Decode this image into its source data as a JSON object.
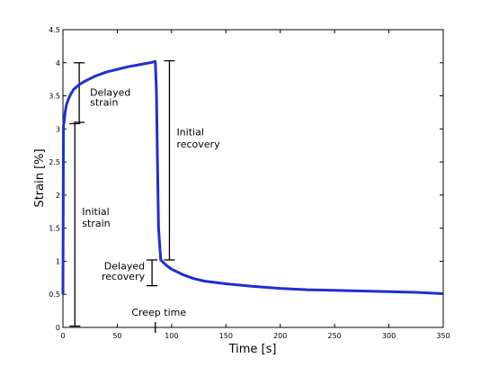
{
  "chart_data": {
    "type": "line",
    "xlabel": "Time [s]",
    "ylabel": "Strain [%]",
    "xlim": [
      0,
      350
    ],
    "ylim": [
      0,
      4.5
    ],
    "xticks": [
      0,
      50,
      100,
      150,
      200,
      250,
      300,
      350
    ],
    "yticks": [
      0,
      0.5,
      1,
      1.5,
      2,
      2.5,
      3,
      3.5,
      4,
      4.5
    ],
    "grid": false,
    "series": [
      {
        "color": "#1f2fd1",
        "x": [
          0,
          0.5,
          1,
          2,
          3,
          5,
          7,
          10,
          15,
          20,
          25,
          30,
          40,
          50,
          60,
          70,
          80,
          85,
          86,
          87,
          88,
          90,
          95,
          100,
          110,
          120,
          130,
          150,
          175,
          200,
          225,
          250,
          275,
          300,
          325,
          350
        ],
        "y": [
          0.5,
          3.05,
          3.1,
          3.25,
          3.35,
          3.45,
          3.52,
          3.6,
          3.67,
          3.72,
          3.76,
          3.8,
          3.86,
          3.9,
          3.94,
          3.97,
          4.0,
          4.02,
          3.6,
          2.5,
          1.5,
          1.02,
          0.94,
          0.88,
          0.8,
          0.74,
          0.7,
          0.66,
          0.62,
          0.59,
          0.57,
          0.56,
          0.55,
          0.54,
          0.53,
          0.51
        ]
      }
    ],
    "annotations": [
      {
        "text_lines": [
          "Delayed",
          "strain"
        ],
        "range_x": 15,
        "range_y": [
          3.1,
          4.0
        ]
      },
      {
        "text_lines": [
          "Initial",
          "strain"
        ],
        "range_x": 11,
        "range_y": [
          0.02,
          3.08
        ]
      },
      {
        "text_lines": [
          "Initial",
          "recovery"
        ],
        "range_x": 98,
        "range_y": [
          1.02,
          4.03
        ]
      },
      {
        "text_lines": [
          "Delayed",
          "recovery"
        ],
        "range_x": 82,
        "range_y": [
          0.63,
          1.02
        ]
      },
      {
        "text_lines": [
          "Creep time"
        ],
        "marker_x": 85
      }
    ]
  }
}
